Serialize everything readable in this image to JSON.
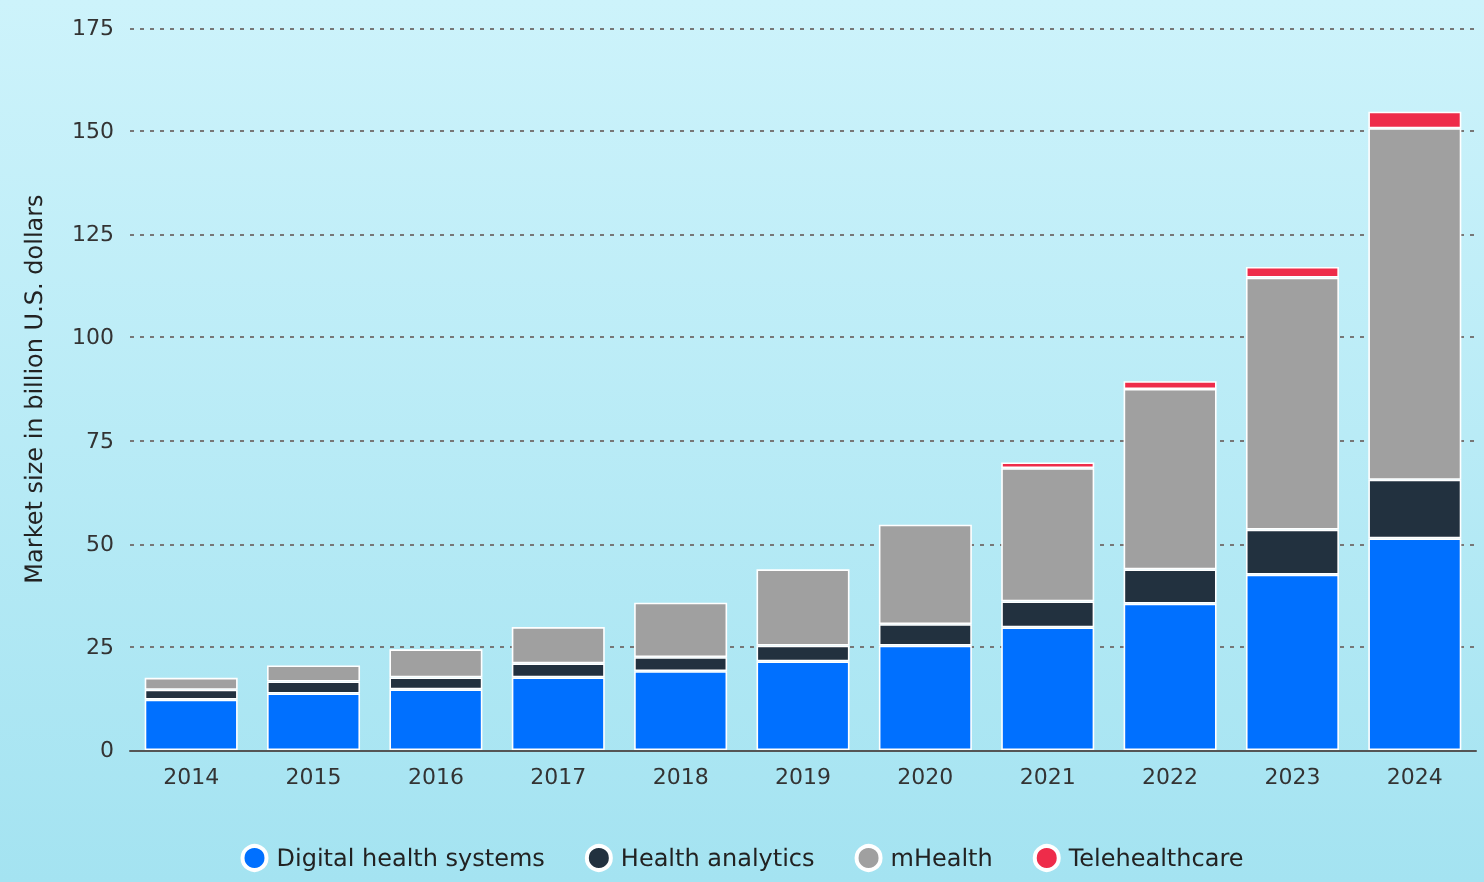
{
  "chart_data": {
    "type": "bar",
    "stacked": true,
    "ylabel": "Market size in billion U.S. dollars",
    "categories": [
      "2014",
      "2015",
      "2016",
      "2017",
      "2018",
      "2019",
      "2020",
      "2021",
      "2022",
      "2023",
      "2024"
    ],
    "series": [
      {
        "name": "Digital health systems",
        "color": "#0070ff",
        "values": [
          12.2,
          13.7,
          14.7,
          17.6,
          19.1,
          21.5,
          25.3,
          29.7,
          35.5,
          42.5,
          51.3
        ]
      },
      {
        "name": "Health analytics",
        "color": "#22313f",
        "values": [
          2.4,
          2.9,
          2.9,
          3.4,
          3.4,
          3.8,
          5.2,
          6.3,
          8.3,
          10.9,
          14.2
        ]
      },
      {
        "name": "mHealth",
        "color": "#a0a0a0",
        "values": [
          2.9,
          3.9,
          6.8,
          8.8,
          13.2,
          18.5,
          24.1,
          32.3,
          43.7,
          61.1,
          85.2
        ]
      },
      {
        "name": "Telehealthcare",
        "color": "#ee2c4a",
        "values": [
          null,
          null,
          null,
          null,
          null,
          null,
          null,
          1.4,
          1.9,
          2.6,
          4.0
        ]
      }
    ],
    "ylim": [
      0,
      175
    ],
    "yticks": [
      0,
      25,
      50,
      75,
      100,
      125,
      150,
      175
    ],
    "grid": "y",
    "legend": "bottom"
  }
}
